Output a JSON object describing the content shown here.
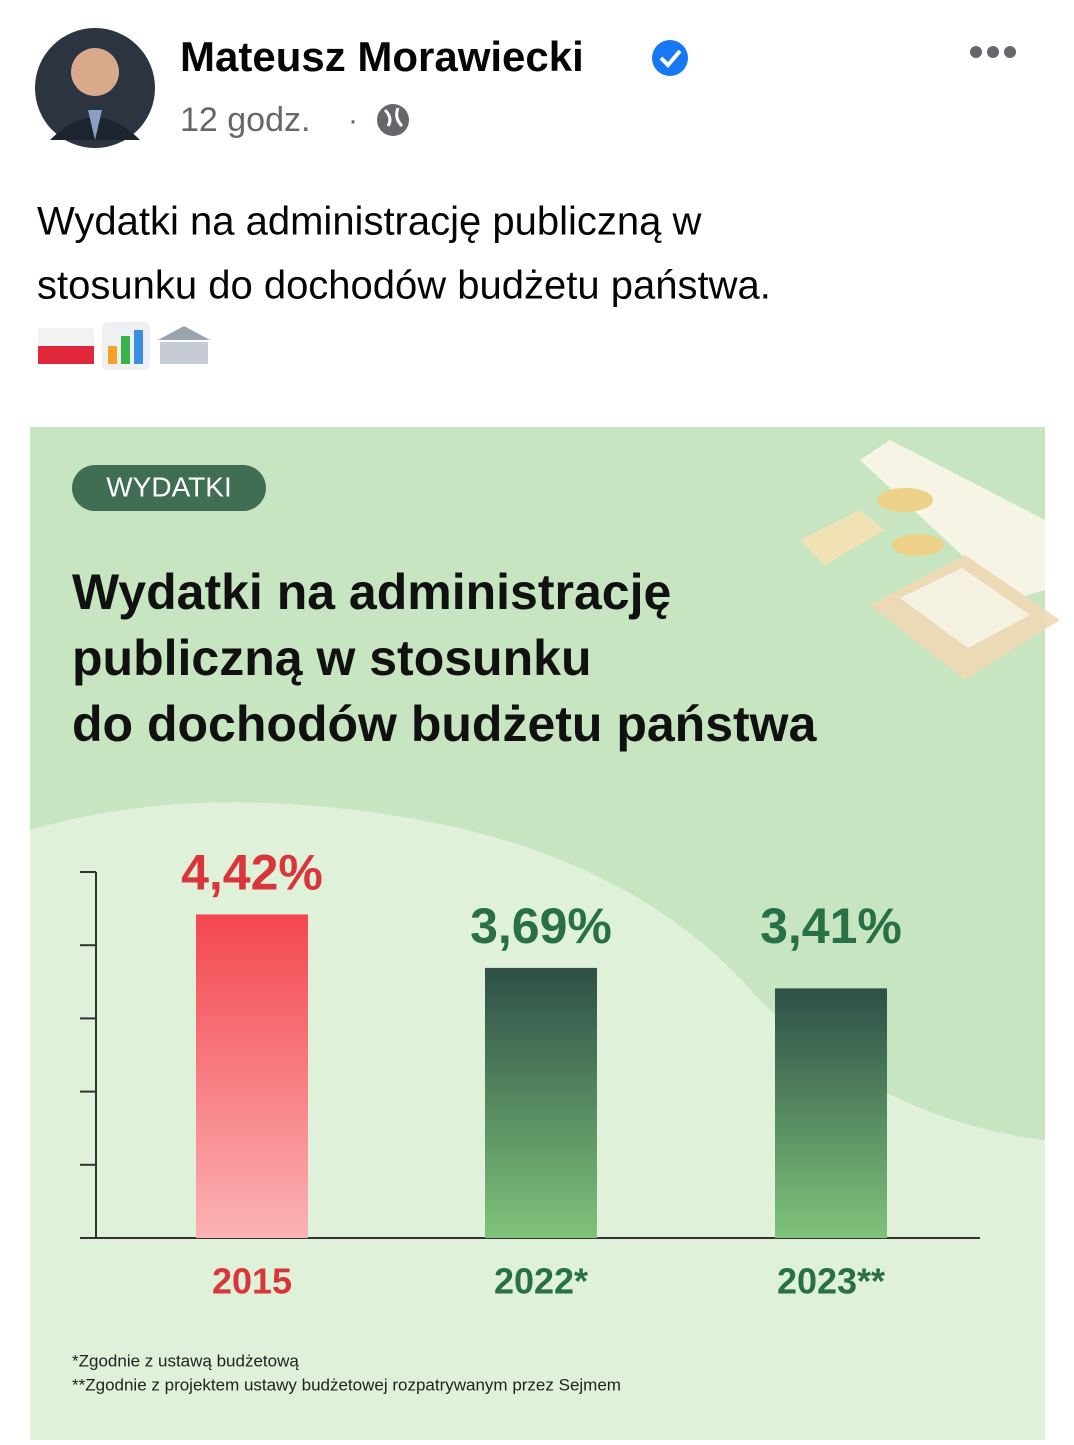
{
  "post": {
    "author": "Mateusz Morawiecki",
    "time": "12 godz.",
    "separator": "·",
    "text": [
      "Wydatki na administrację publiczną w",
      "stosunku do dochodów budżetu państwa."
    ]
  },
  "chart_data": {
    "type": "bar",
    "badge": "WYDATKI",
    "title": [
      "Wydatki na administrację",
      "publiczną w stosunku",
      "do dochodów budżetu państwa"
    ],
    "categories": [
      "2015",
      "2022*",
      "2023**"
    ],
    "values": [
      4.42,
      3.69,
      3.41
    ],
    "value_labels": [
      "4,42%",
      "3,69%",
      "3,41%"
    ],
    "colors": [
      "#f4474f",
      "#2d4f47",
      "#2d4f47"
    ],
    "colors_bottom": [
      "#fbb3b5",
      "#7fc37a",
      "#7fc37a"
    ],
    "label_colors": [
      "#d9363c",
      "#2a7047",
      "#2a7047"
    ],
    "ylim": [
      0,
      5
    ],
    "yticks": [
      0,
      1,
      2,
      3,
      4,
      5
    ],
    "footnotes": [
      "*Zgodnie z ustawą budżetową",
      "**Zgodnie z projektem ustawy budżetowej rozpatrywanym przez Sejmem"
    ]
  }
}
